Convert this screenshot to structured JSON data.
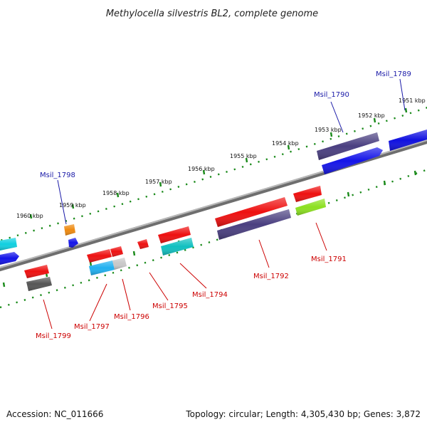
{
  "title": "Methylocella silvestris BL2, complete genome",
  "footer": {
    "accession": "Accession: NC_011666",
    "summary": "Topology: circular; Length: 4,305,430 bp; Genes: 3,872"
  },
  "colors": {
    "backbone": "#8a8a8a",
    "tick_dot": "#1a8a1a",
    "label_red": "#cc0000",
    "label_blue": "#1a1aa8"
  },
  "ticks": [
    {
      "label": "1951 kbp"
    },
    {
      "label": "1952 kbp"
    },
    {
      "label": "1953 kbp"
    },
    {
      "label": "1954 kbp"
    },
    {
      "label": "1955 kbp"
    },
    {
      "label": "1956 kbp"
    },
    {
      "label": "1957 kbp"
    },
    {
      "label": "1958 kbp"
    },
    {
      "label": "1959 kbp"
    },
    {
      "label": "1960 kbp"
    }
  ],
  "gene_labels": [
    {
      "name": "Msil_1789",
      "strand": "top"
    },
    {
      "name": "Msil_1790",
      "strand": "top"
    },
    {
      "name": "Msil_1798",
      "strand": "top"
    },
    {
      "name": "Msil_1791",
      "strand": "bottom"
    },
    {
      "name": "Msil_1792",
      "strand": "bottom"
    },
    {
      "name": "Msil_1794",
      "strand": "bottom"
    },
    {
      "name": "Msil_1795",
      "strand": "bottom"
    },
    {
      "name": "Msil_1796",
      "strand": "bottom"
    },
    {
      "name": "Msil_1797",
      "strand": "bottom"
    },
    {
      "name": "Msil_1799",
      "strand": "bottom"
    }
  ],
  "features": [
    {
      "name": "feature-top-right-blue",
      "color": "#1010e0"
    },
    {
      "name": "feature-top-msil-1790-purple",
      "color": "#4a3f80"
    },
    {
      "name": "feature-top-msil-1790-blue",
      "color": "#1414e8"
    },
    {
      "name": "feature-top-msil-1798-orange",
      "color": "#ee8a10"
    },
    {
      "name": "feature-top-msil-1798-blue",
      "color": "#1414e8"
    },
    {
      "name": "feature-top-left-cyan",
      "color": "#10d0e0"
    },
    {
      "name": "feature-top-left-blue",
      "color": "#1414e8"
    },
    {
      "name": "feature-msil-1791-red",
      "color": "#ee1010"
    },
    {
      "name": "feature-msil-1791-green",
      "color": "#8ce020"
    },
    {
      "name": "feature-msil-1792-red",
      "color": "#ee1010"
    },
    {
      "name": "feature-msil-1792-purple",
      "color": "#4a3f80"
    },
    {
      "name": "feature-msil-1794-red",
      "color": "#ee1010"
    },
    {
      "name": "feature-msil-1794-teal",
      "color": "#10c0c0"
    },
    {
      "name": "feature-msil-1795-red",
      "color": "#ee1010"
    },
    {
      "name": "feature-msil-1796-red",
      "color": "#ee1010"
    },
    {
      "name": "feature-msil-1796-grey",
      "color": "#c8c8c8"
    },
    {
      "name": "feature-msil-1797-red",
      "color": "#ee1010"
    },
    {
      "name": "feature-msil-1797-cyan",
      "color": "#20b0f0"
    },
    {
      "name": "feature-msil-1799-red",
      "color": "#ee1010"
    },
    {
      "name": "feature-msil-1799-grey",
      "color": "#555555"
    }
  ]
}
